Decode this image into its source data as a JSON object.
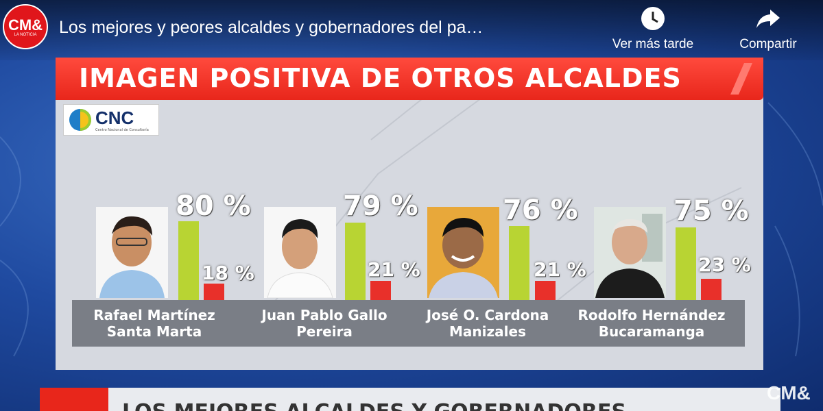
{
  "header": {
    "channel_logo": "CM&",
    "channel_logo_sub": "LA NOTICIA",
    "video_title": "Los mejores y peores alcaldes y gobernadores del pa…",
    "watch_later_label": "Ver más tarde",
    "watch_later_icon": "clock-icon",
    "share_label": "Compartir",
    "share_icon": "share-arrow-icon"
  },
  "slide": {
    "title": "IMAGEN POSITIVA DE OTROS ALCALDES",
    "source_logo": "CNC",
    "source_logo_sub": "Centro Nacional de Consultoría",
    "colors": {
      "positive": "#b8d433",
      "negative": "#e8302a",
      "banner": "#e8261b"
    },
    "candidates": [
      {
        "name": "Rafael Martínez",
        "city": "Santa Marta",
        "positive": 80,
        "negative": 18,
        "positive_label": "80 %",
        "negative_label": "18 %"
      },
      {
        "name": "Juan Pablo Gallo",
        "city": "Pereira",
        "positive": 79,
        "negative": 21,
        "positive_label": "79 %",
        "negative_label": "21 %"
      },
      {
        "name": "José O. Cardona",
        "city": "Manizales",
        "positive": 76,
        "negative": 21,
        "positive_label": "76 %",
        "negative_label": "21 %"
      },
      {
        "name": "Rodolfo Hernández",
        "city": "Bucaramanga",
        "positive": 75,
        "negative": 23,
        "positive_label": "75 %",
        "negative_label": "23 %"
      }
    ]
  },
  "footer": {
    "next_slide_text": "LOS MEJORES ALCALDES Y GOBERNADORES",
    "watermark": "CM&"
  }
}
